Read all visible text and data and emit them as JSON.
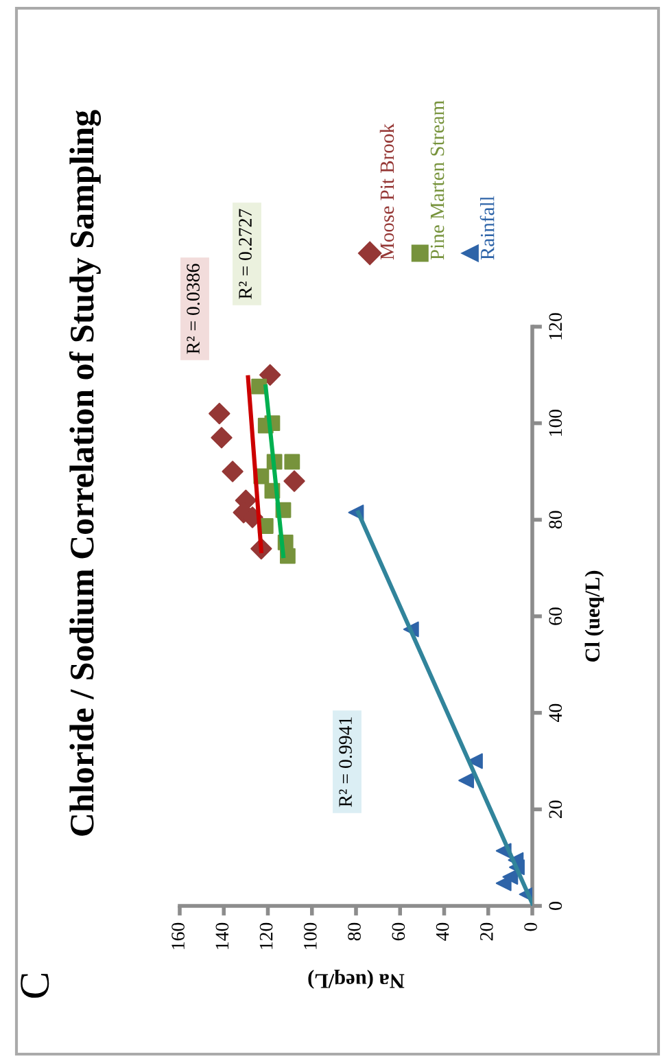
{
  "chart_data": {
    "type": "scatter",
    "title": "Chloride / Sodium Correlation of Study Sampling",
    "xlabel": "Na (ueq/L)",
    "ylabel": "Cl (ueq/L)",
    "annotations": [
      "C",
      "R² = 0.0386",
      "R² = 0.2727",
      "R² = 0.9941"
    ],
    "series": [
      {
        "name": "Moose Pit Brook",
        "color": "#953735",
        "marker": "diamond",
        "x": [
          119,
          142,
          141,
          136,
          108,
          130,
          131,
          127,
          123
        ],
        "values": [
          110,
          102,
          97,
          90,
          88,
          84,
          81.5,
          80.5,
          74
        ]
      },
      {
        "name": "Pine Marten Stream",
        "color": "#77933c",
        "marker": "square",
        "x": [
          124,
          118,
          121,
          109,
          117,
          123,
          118,
          113,
          121,
          112,
          111
        ],
        "values": [
          107.6,
          100,
          99.5,
          92,
          92,
          89,
          86,
          82,
          78.7,
          75.3,
          72.5
        ]
      },
      {
        "name": "Rainfall",
        "color": "#2e64a8",
        "marker": "triangle",
        "x": [
          80,
          55,
          26,
          30,
          13,
          7.5,
          7,
          10,
          13,
          2.5
        ],
        "values": [
          81.5,
          57.3,
          30,
          26,
          11.4,
          9.5,
          8,
          6,
          4.7,
          2.4
        ]
      },
      {
        "type": "line",
        "color": "#cc0000",
        "x": [
          129,
          123
        ],
        "values": [
          109.5,
          73.5
        ]
      },
      {
        "type": "line",
        "color": "#00b050",
        "x": [
          121,
          113
        ],
        "values": [
          107.6,
          72.5
        ]
      },
      {
        "type": "line",
        "color": "#31849b",
        "x": [
          79,
          0
        ],
        "values": [
          81.5,
          0.5
        ]
      }
    ],
    "xlim": [
      160,
      0
    ],
    "xticks": [
      160,
      140,
      120,
      100,
      80,
      60,
      40,
      20,
      0
    ],
    "ylim": [
      0,
      120
    ],
    "yticks": [
      0,
      20,
      40,
      60,
      80,
      100,
      120
    ],
    "legend": "top right",
    "grid": false
  }
}
